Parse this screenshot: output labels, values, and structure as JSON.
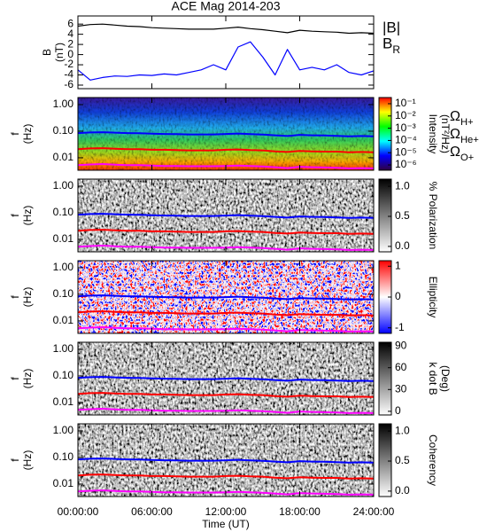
{
  "chart_data": [
    {
      "type": "line",
      "title": "ACE Mag 2014-203",
      "ylabel": [
        "B",
        "(nT)"
      ],
      "x": [
        0,
        1,
        2,
        3,
        4,
        5,
        6,
        7,
        8,
        9,
        10,
        11,
        12,
        13,
        14,
        15,
        16,
        17,
        18,
        19,
        20,
        21,
        22,
        23,
        24
      ],
      "xlim": [
        0,
        24
      ],
      "ylim": [
        -6.7,
        7.6
      ],
      "yticks": [
        6,
        4,
        2,
        0,
        -2,
        -4,
        -6
      ],
      "series": [
        {
          "name": "|B|",
          "color": "#000000",
          "values": [
            5.6,
            5.9,
            6.0,
            5.8,
            5.6,
            5.5,
            5.3,
            5.2,
            5.1,
            5.0,
            5.0,
            5.0,
            5.2,
            5.4,
            5.1,
            4.9,
            4.6,
            4.3,
            4.8,
            4.6,
            4.5,
            4.4,
            4.2,
            4.3,
            4.2
          ]
        },
        {
          "name": "BR",
          "color": "#0000ff",
          "values": [
            -3.0,
            -5.0,
            -4.5,
            -4.2,
            -4.3,
            -4.0,
            -4.1,
            -3.8,
            -4.0,
            -3.5,
            -3.0,
            -2.0,
            -3.0,
            1.5,
            2.5,
            -0.5,
            -4.0,
            1.0,
            -3.0,
            -2.5,
            -3.0,
            -2.0,
            -3.5,
            -4.0,
            -3.2
          ]
        }
      ]
    },
    {
      "type": "spectrogram",
      "ylabel": [
        "f",
        "(Hz)"
      ],
      "log_y": true,
      "ylim": [
        0.0034,
        1.85
      ],
      "yticks": [
        {
          "value": 1,
          "label": "1.00"
        },
        {
          "value": 0.1,
          "label": "0.10"
        },
        {
          "value": 0.01,
          "label": "0.01"
        }
      ],
      "colormap": "jet",
      "colorbar": {
        "label": [
          "Intensity",
          "(nT²/Hz)"
        ],
        "log": true,
        "lim": [
          3.7e-07,
          0.32
        ],
        "ticks": [
          {
            "value": 0.1,
            "label": "10⁻¹"
          },
          {
            "value": 0.01,
            "label": "10⁻²"
          },
          {
            "value": 0.001,
            "label": "10⁻³"
          },
          {
            "value": 0.0001,
            "label": "10⁻⁴"
          },
          {
            "value": 1e-05,
            "label": "10⁻⁵"
          },
          {
            "value": 1e-06,
            "label": "10⁻⁶"
          }
        ]
      },
      "x": [
        0,
        1,
        2,
        3,
        4,
        5,
        6,
        7,
        8,
        9,
        10,
        11,
        12,
        13,
        14,
        15,
        16,
        17,
        18,
        19,
        20,
        21,
        22,
        23,
        24
      ],
      "xlim": [
        0,
        24
      ],
      "series": [
        {
          "name": "ΩH+",
          "color": "#0000ff",
          "values": [
            0.085,
            0.09,
            0.092,
            0.088,
            0.085,
            0.084,
            0.081,
            0.079,
            0.078,
            0.076,
            0.076,
            0.076,
            0.079,
            0.082,
            0.078,
            0.075,
            0.07,
            0.066,
            0.073,
            0.07,
            0.069,
            0.067,
            0.064,
            0.066,
            0.064
          ]
        },
        {
          "name": "ΩHe+",
          "color": "#ff0000",
          "values": [
            0.021,
            0.0225,
            0.023,
            0.022,
            0.021,
            0.021,
            0.02,
            0.02,
            0.0195,
            0.019,
            0.019,
            0.019,
            0.02,
            0.0205,
            0.0195,
            0.019,
            0.0175,
            0.0165,
            0.018,
            0.0175,
            0.017,
            0.017,
            0.016,
            0.0165,
            0.016
          ]
        },
        {
          "name": "ΩO+",
          "color": "#ff00ff",
          "values": [
            0.0053,
            0.0056,
            0.0058,
            0.0055,
            0.0053,
            0.0053,
            0.0051,
            0.0049,
            0.0049,
            0.0048,
            0.0048,
            0.0048,
            0.0049,
            0.0051,
            0.0049,
            0.0047,
            0.0044,
            0.0041,
            0.0046,
            0.0044,
            0.0043,
            0.0042,
            0.004,
            0.0041,
            0.004
          ]
        }
      ]
    },
    {
      "type": "spectrogram",
      "ylabel": [
        "f",
        "(Hz)"
      ],
      "log_y": true,
      "ylim": [
        0.0034,
        1.85
      ],
      "yticks": [
        {
          "value": 1,
          "label": "1.00"
        },
        {
          "value": 0.1,
          "label": "0.10"
        },
        {
          "value": 0.01,
          "label": "0.01"
        }
      ],
      "colormap": "gray",
      "colorbar": {
        "label": [
          "% Polarization"
        ],
        "lim": [
          -0.09,
          1.12
        ],
        "ticks": [
          {
            "value": 0,
            "label": "0.0"
          },
          {
            "value": 0.5,
            "label": "0.5"
          },
          {
            "value": 1,
            "label": "1.0"
          }
        ]
      },
      "x": [
        0,
        1,
        2,
        3,
        4,
        5,
        6,
        7,
        8,
        9,
        10,
        11,
        12,
        13,
        14,
        15,
        16,
        17,
        18,
        19,
        20,
        21,
        22,
        23,
        24
      ],
      "xlim": [
        0,
        24
      ],
      "series": [
        {
          "color": "#0000ff",
          "values": [
            0.085,
            0.09,
            0.092,
            0.088,
            0.085,
            0.084,
            0.081,
            0.079,
            0.078,
            0.076,
            0.076,
            0.076,
            0.079,
            0.082,
            0.078,
            0.075,
            0.07,
            0.066,
            0.073,
            0.07,
            0.069,
            0.067,
            0.064,
            0.066,
            0.064
          ]
        },
        {
          "color": "#ff0000",
          "values": [
            0.021,
            0.0225,
            0.023,
            0.022,
            0.021,
            0.021,
            0.02,
            0.02,
            0.0195,
            0.019,
            0.019,
            0.019,
            0.02,
            0.0205,
            0.0195,
            0.019,
            0.0175,
            0.0165,
            0.018,
            0.0175,
            0.017,
            0.017,
            0.016,
            0.0165,
            0.016
          ]
        },
        {
          "color": "#ff00ff",
          "values": [
            0.0053,
            0.0056,
            0.0058,
            0.0055,
            0.0053,
            0.0053,
            0.0051,
            0.0049,
            0.0049,
            0.0048,
            0.0048,
            0.0048,
            0.0049,
            0.0051,
            0.0049,
            0.0047,
            0.0044,
            0.0041,
            0.0046,
            0.0044,
            0.0043,
            0.0042,
            0.004,
            0.0041,
            0.004
          ]
        }
      ]
    },
    {
      "type": "spectrogram",
      "ylabel": [
        "f",
        "(Hz)"
      ],
      "log_y": true,
      "ylim": [
        0.0034,
        1.85
      ],
      "yticks": [
        {
          "value": 1,
          "label": "1.00"
        },
        {
          "value": 0.1,
          "label": "0.10"
        },
        {
          "value": 0.01,
          "label": "0.01"
        }
      ],
      "colormap": "bwr",
      "colorbar": {
        "label": [
          "Ellipticity"
        ],
        "lim": [
          -1.18,
          1.18
        ],
        "ticks": [
          1,
          0,
          -1
        ]
      },
      "x": [
        0,
        1,
        2,
        3,
        4,
        5,
        6,
        7,
        8,
        9,
        10,
        11,
        12,
        13,
        14,
        15,
        16,
        17,
        18,
        19,
        20,
        21,
        22,
        23,
        24
      ],
      "xlim": [
        0,
        24
      ],
      "series": [
        {
          "color": "#0000ff",
          "values": [
            0.085,
            0.09,
            0.092,
            0.088,
            0.085,
            0.084,
            0.081,
            0.079,
            0.078,
            0.076,
            0.076,
            0.076,
            0.079,
            0.082,
            0.078,
            0.075,
            0.07,
            0.066,
            0.073,
            0.07,
            0.069,
            0.067,
            0.064,
            0.066,
            0.064
          ]
        },
        {
          "color": "#ff0000",
          "values": [
            0.021,
            0.0225,
            0.023,
            0.022,
            0.021,
            0.021,
            0.02,
            0.02,
            0.0195,
            0.019,
            0.019,
            0.019,
            0.02,
            0.0205,
            0.0195,
            0.019,
            0.0175,
            0.0165,
            0.018,
            0.0175,
            0.017,
            0.017,
            0.016,
            0.0165,
            0.016
          ]
        },
        {
          "color": "#ff00ff",
          "values": [
            0.0053,
            0.0056,
            0.0058,
            0.0055,
            0.0053,
            0.0053,
            0.0051,
            0.0049,
            0.0049,
            0.0048,
            0.0048,
            0.0048,
            0.0049,
            0.0051,
            0.0049,
            0.0047,
            0.0044,
            0.0041,
            0.0046,
            0.0044,
            0.0043,
            0.0042,
            0.004,
            0.0041,
            0.004
          ]
        }
      ]
    },
    {
      "type": "spectrogram",
      "ylabel": [
        "f",
        "(Hz)"
      ],
      "log_y": true,
      "ylim": [
        0.0034,
        1.85
      ],
      "yticks": [
        {
          "value": 1,
          "label": "1.00"
        },
        {
          "value": 0.1,
          "label": "0.10"
        },
        {
          "value": 0.01,
          "label": "0.01"
        }
      ],
      "colormap": "gray",
      "colorbar": {
        "label": [
          "k dot B",
          "(Deg)"
        ],
        "lim": [
          -5,
          95
        ],
        "ticks": [
          90,
          60,
          30,
          0
        ]
      },
      "x": [
        0,
        1,
        2,
        3,
        4,
        5,
        6,
        7,
        8,
        9,
        10,
        11,
        12,
        13,
        14,
        15,
        16,
        17,
        18,
        19,
        20,
        21,
        22,
        23,
        24
      ],
      "xlim": [
        0,
        24
      ],
      "series": [
        {
          "color": "#0000ff",
          "values": [
            0.085,
            0.09,
            0.092,
            0.088,
            0.085,
            0.084,
            0.081,
            0.079,
            0.078,
            0.076,
            0.076,
            0.076,
            0.079,
            0.082,
            0.078,
            0.075,
            0.07,
            0.066,
            0.073,
            0.07,
            0.069,
            0.067,
            0.064,
            0.066,
            0.064
          ]
        },
        {
          "color": "#ff0000",
          "values": [
            0.021,
            0.0225,
            0.023,
            0.022,
            0.021,
            0.021,
            0.02,
            0.02,
            0.0195,
            0.019,
            0.019,
            0.019,
            0.02,
            0.0205,
            0.0195,
            0.019,
            0.0175,
            0.0165,
            0.018,
            0.0175,
            0.017,
            0.017,
            0.016,
            0.0165,
            0.016
          ]
        },
        {
          "color": "#ff00ff",
          "values": [
            0.0053,
            0.0056,
            0.0058,
            0.0055,
            0.0053,
            0.0053,
            0.0051,
            0.0049,
            0.0049,
            0.0048,
            0.0048,
            0.0048,
            0.0049,
            0.0051,
            0.0049,
            0.0047,
            0.0044,
            0.0041,
            0.0046,
            0.0044,
            0.0043,
            0.0042,
            0.004,
            0.0041,
            0.004
          ]
        }
      ]
    },
    {
      "type": "spectrogram",
      "ylabel": [
        "f",
        "(Hz)"
      ],
      "log_y": true,
      "ylim": [
        0.0034,
        1.85
      ],
      "yticks": [
        {
          "value": 1,
          "label": "1.00"
        },
        {
          "value": 0.1,
          "label": "0.10"
        },
        {
          "value": 0.01,
          "label": "0.01"
        }
      ],
      "colormap": "gray",
      "colorbar": {
        "label": [
          "Coherency"
        ],
        "lim": [
          -0.09,
          1.12
        ],
        "ticks": [
          {
            "value": 0,
            "label": "0.0"
          },
          {
            "value": 0.5,
            "label": "0.5"
          },
          {
            "value": 1,
            "label": "1.0"
          }
        ]
      },
      "x": [
        0,
        1,
        2,
        3,
        4,
        5,
        6,
        7,
        8,
        9,
        10,
        11,
        12,
        13,
        14,
        15,
        16,
        17,
        18,
        19,
        20,
        21,
        22,
        23,
        24
      ],
      "xlim": [
        0,
        24
      ],
      "xticks": [
        {
          "value": 0,
          "label": "00:00:00"
        },
        {
          "value": 6,
          "label": "06:00:00"
        },
        {
          "value": 12,
          "label": "12:00:00"
        },
        {
          "value": 18,
          "label": "18:00:00"
        },
        {
          "value": 24,
          "label": "24:00:00"
        }
      ],
      "xlabel": "Time (UT)",
      "series": [
        {
          "color": "#0000ff",
          "values": [
            0.085,
            0.09,
            0.092,
            0.088,
            0.085,
            0.084,
            0.081,
            0.079,
            0.078,
            0.076,
            0.076,
            0.076,
            0.079,
            0.082,
            0.078,
            0.075,
            0.07,
            0.066,
            0.073,
            0.07,
            0.069,
            0.067,
            0.064,
            0.066,
            0.064
          ]
        },
        {
          "color": "#ff0000",
          "values": [
            0.021,
            0.0225,
            0.023,
            0.022,
            0.021,
            0.021,
            0.02,
            0.02,
            0.0195,
            0.019,
            0.019,
            0.019,
            0.02,
            0.0205,
            0.0195,
            0.019,
            0.0175,
            0.0165,
            0.018,
            0.0175,
            0.017,
            0.017,
            0.016,
            0.0165,
            0.016
          ]
        },
        {
          "color": "#ff00ff",
          "values": [
            0.0053,
            0.0056,
            0.0058,
            0.0055,
            0.0053,
            0.0053,
            0.0051,
            0.0049,
            0.0049,
            0.0048,
            0.0048,
            0.0048,
            0.0049,
            0.0051,
            0.0049,
            0.0047,
            0.0044,
            0.0041,
            0.0046,
            0.0044,
            0.0043,
            0.0042,
            0.004,
            0.0041,
            0.004
          ]
        }
      ]
    }
  ]
}
